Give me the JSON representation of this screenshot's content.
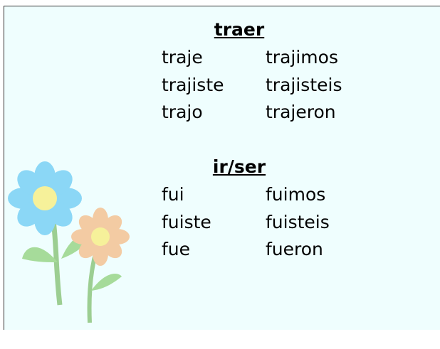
{
  "sections": [
    {
      "title": "traer",
      "forms": [
        [
          "traje",
          "trajimos"
        ],
        [
          "trajiste",
          "trajisteis"
        ],
        [
          "trajo",
          "trajeron"
        ]
      ]
    },
    {
      "title": "ir/ser",
      "forms": [
        [
          "fui",
          "fuimos"
        ],
        [
          "fuiste",
          "fuisteis"
        ],
        [
          "fue",
          "fueron"
        ]
      ]
    }
  ]
}
